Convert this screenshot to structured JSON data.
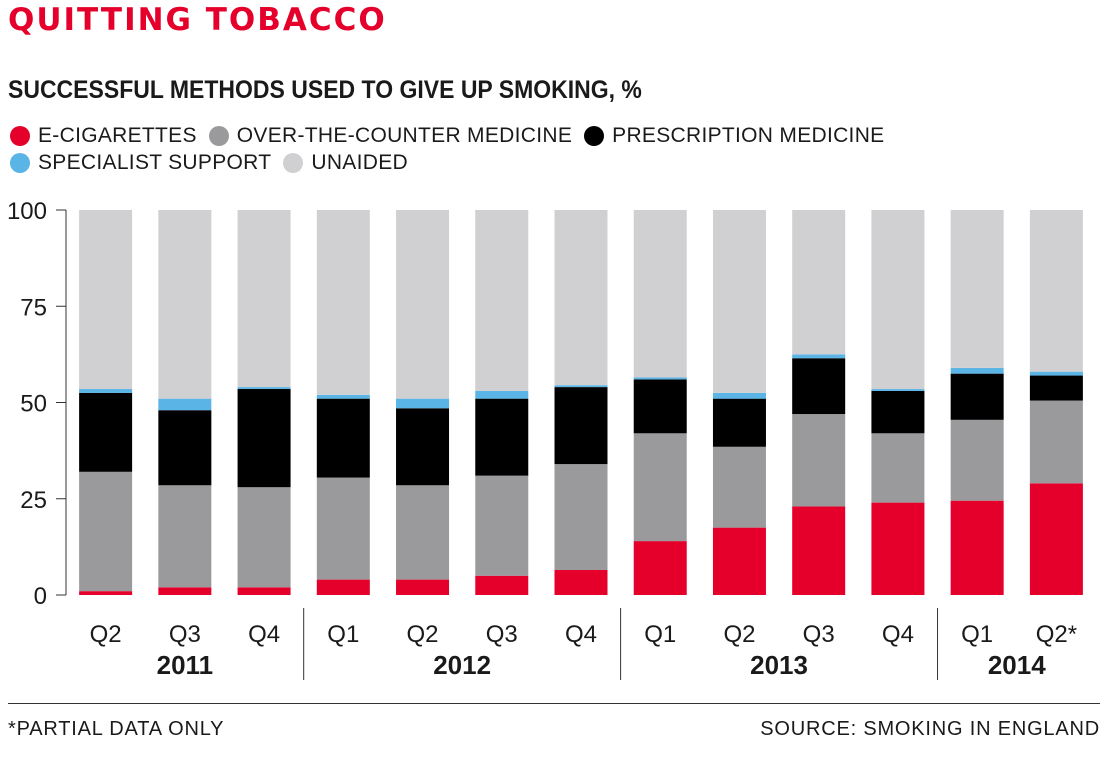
{
  "header": {
    "kicker": "QUITTING TOBACCO",
    "title": "SUCCESSFUL METHODS USED TO GIVE UP SMOKING, %"
  },
  "legend": [
    {
      "label": "E-CIGARETTES",
      "color": "#e4002b"
    },
    {
      "label": "OVER-THE-COUNTER MEDICINE",
      "color": "#9a9a9c"
    },
    {
      "label": "PRESCRIPTION MEDICINE",
      "color": "#000000"
    },
    {
      "label": "SPECIALIST SUPPORT",
      "color": "#5ab4e5"
    },
    {
      "label": "UNAIDED",
      "color": "#d0d0d2"
    }
  ],
  "footer": {
    "footnote": "*PARTIAL DATA ONLY",
    "source": "SOURCE: SMOKING IN ENGLAND"
  },
  "chart_data": {
    "type": "bar",
    "stacked": true,
    "categories": [
      "Q2",
      "Q3",
      "Q4",
      "Q1",
      "Q2",
      "Q3",
      "Q4",
      "Q1",
      "Q2",
      "Q3",
      "Q4",
      "Q1",
      "Q2*"
    ],
    "year_groups": [
      {
        "year": "2011",
        "count": 3
      },
      {
        "year": "2012",
        "count": 4
      },
      {
        "year": "2013",
        "count": 4
      },
      {
        "year": "2014",
        "count": 2
      }
    ],
    "yticks": [
      0,
      25,
      50,
      75,
      100
    ],
    "ylim": [
      0,
      100
    ],
    "series": [
      {
        "name": "E-CIGARETTES",
        "color": "#e4002b",
        "values": [
          1,
          2,
          2,
          4,
          4,
          5,
          6.5,
          14,
          17.5,
          23,
          24,
          24.5,
          29
        ]
      },
      {
        "name": "OVER-THE-COUNTER MEDICINE",
        "color": "#9a9a9c",
        "values": [
          31,
          26.5,
          26,
          26.5,
          24.5,
          26,
          27.5,
          28,
          21,
          24,
          18,
          21,
          21.5
        ]
      },
      {
        "name": "PRESCRIPTION MEDICINE",
        "color": "#000000",
        "values": [
          20.5,
          19.5,
          25.5,
          20.5,
          20,
          20,
          20,
          14,
          12.5,
          14.5,
          11,
          12,
          6.5
        ]
      },
      {
        "name": "SPECIALIST SUPPORT",
        "color": "#5ab4e5",
        "values": [
          1,
          3,
          0.5,
          1,
          2.5,
          2,
          0.5,
          0.5,
          1.5,
          1,
          0.5,
          1.5,
          1
        ]
      },
      {
        "name": "UNAIDED",
        "color": "#d0d0d2",
        "values": [
          46.5,
          49,
          46,
          48,
          49,
          47,
          45.5,
          43.5,
          47.5,
          37.5,
          46.5,
          41,
          42
        ]
      }
    ]
  }
}
